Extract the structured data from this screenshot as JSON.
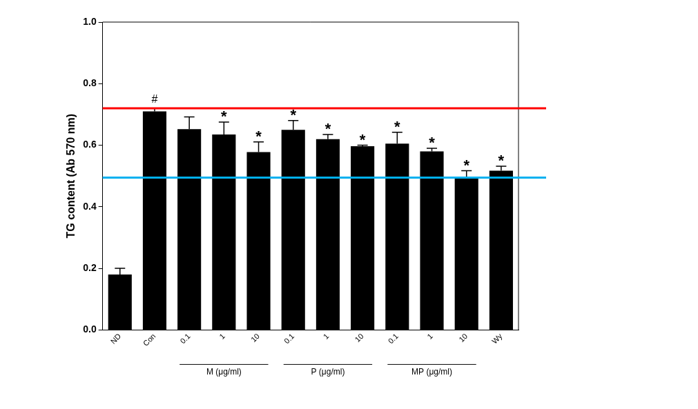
{
  "chart_data": {
    "type": "bar",
    "y_label": "TG content (Ab 570 nm)",
    "categories": [
      "ND",
      "Con",
      "0.1",
      "1",
      "10",
      "0.1",
      "1",
      "10",
      "0.1",
      "1",
      "10",
      "Wy"
    ],
    "values": [
      0.18,
      0.71,
      0.652,
      0.635,
      0.578,
      0.65,
      0.62,
      0.597,
      0.605,
      0.58,
      0.495,
      0.517
    ],
    "errors": [
      0.02,
      0.01,
      0.04,
      0.04,
      0.033,
      0.03,
      0.015,
      0.003,
      0.037,
      0.01,
      0.022,
      0.015
    ],
    "annotations": [
      null,
      "#",
      null,
      "*",
      "*",
      "*",
      "*",
      "*",
      "*",
      "*",
      "*",
      "*"
    ],
    "groups": [
      {
        "label": "M (μg/ml)",
        "from": 2,
        "to": 4
      },
      {
        "label": "P (μg/ml)",
        "from": 5,
        "to": 7
      },
      {
        "label": "MP (μg/ml)",
        "from": 8,
        "to": 10
      }
    ],
    "reference_lines": [
      {
        "value": 0.72,
        "color": "#ff0000"
      },
      {
        "value": 0.495,
        "color": "#00b0f0"
      }
    ],
    "color": "#000000",
    "ylim": [
      0,
      1.0
    ],
    "yticks": [
      {
        "value": 0,
        "label": "0.0"
      },
      {
        "value": 0.2,
        "label": "0.2"
      },
      {
        "value": 0.4,
        "label": "0.4"
      },
      {
        "value": 0.6,
        "label": "0.6"
      },
      {
        "value": 0.8,
        "label": "0.8"
      },
      {
        "value": 1.0,
        "label": "1.0"
      }
    ],
    "grid": false
  }
}
